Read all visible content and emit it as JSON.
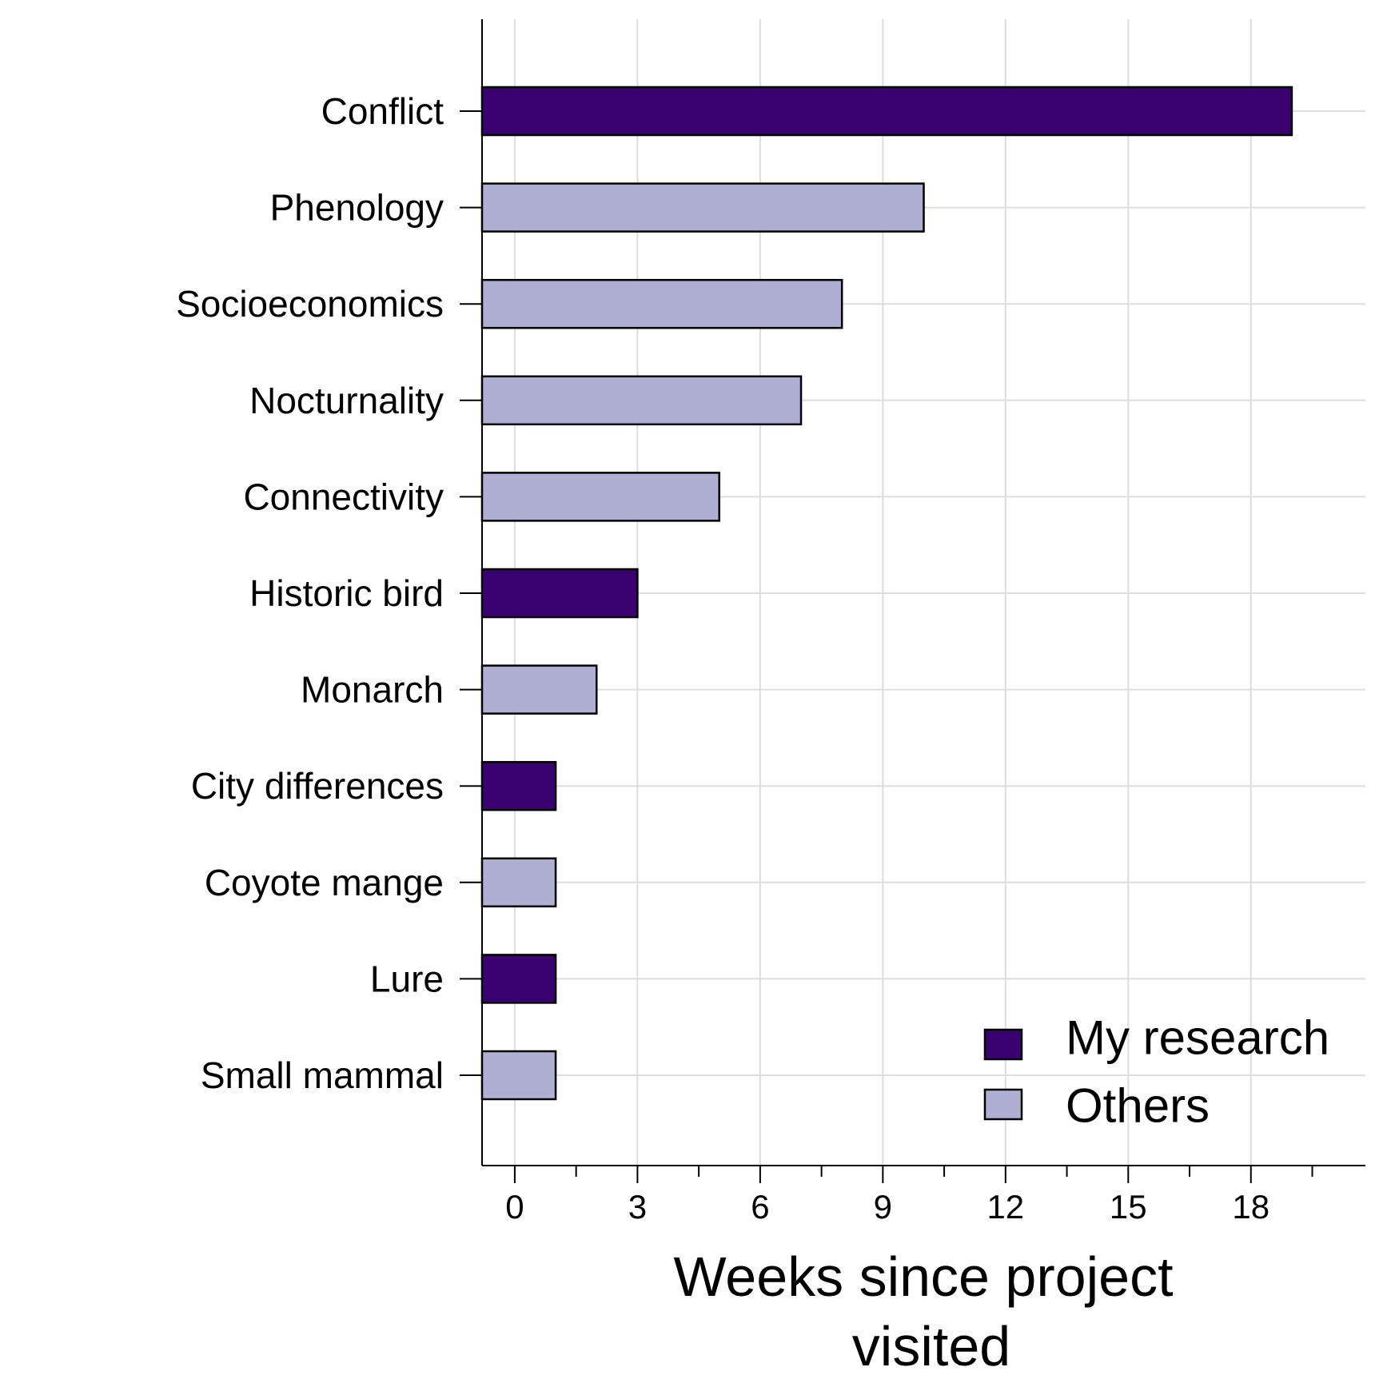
{
  "chart_data": {
    "type": "bar",
    "orientation": "horizontal",
    "categories": [
      "Conflict",
      "Phenology",
      "Socioeconomics",
      "Nocturnality",
      "Connectivity",
      "Historic bird",
      "Monarch",
      "City differences",
      "Coyote mange",
      "Lure",
      "Small mammal"
    ],
    "values": [
      19,
      10,
      8,
      7,
      5,
      3,
      2,
      1,
      1,
      1,
      1
    ],
    "groups": [
      "My research",
      "Others",
      "Others",
      "Others",
      "Others",
      "My research",
      "Others",
      "My research",
      "Others",
      "My research",
      "Others"
    ],
    "xlabel": "Weeks since project visited",
    "xlabel_lines": [
      "Weeks since project",
      "visited"
    ],
    "xlim": [
      -0.8,
      20.8
    ],
    "xticks": [
      0,
      3,
      6,
      9,
      12,
      15,
      18
    ],
    "xticks_minor": [
      1.5,
      4.5,
      7.5,
      10.5,
      13.5,
      16.5,
      19.5
    ],
    "grid": true,
    "legend": {
      "position": "bottom-right",
      "entries": [
        {
          "label": "My research",
          "color": "#3a006e"
        },
        {
          "label": "Others",
          "color": "#afafd4"
        }
      ]
    },
    "colors": {
      "My research": "#3a006e",
      "Others": "#afafd4",
      "grid": "#dddddd",
      "axis": "#000000"
    }
  }
}
